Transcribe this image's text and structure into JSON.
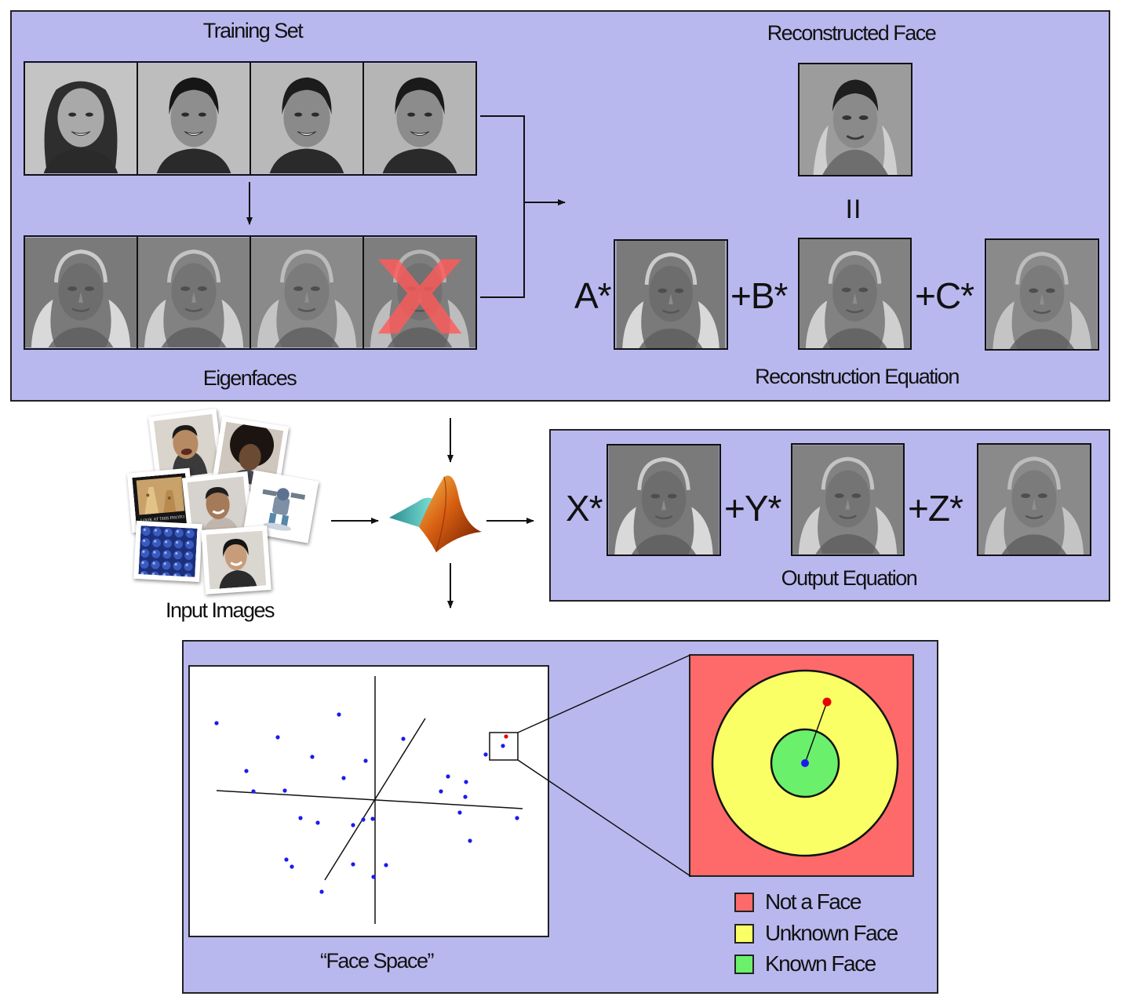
{
  "training": {
    "label": "Training Set",
    "faces": [
      {
        "name": "training-face-1",
        "skin": "#a9a9a9",
        "hair": "#2e2e2e",
        "bg": "#c4c4c4",
        "long_hair": true
      },
      {
        "name": "training-face-2",
        "skin": "#8e8e8e",
        "hair": "#161616",
        "bg": "#bdbdbd",
        "long_hair": false
      },
      {
        "name": "training-face-3",
        "skin": "#8a8a8a",
        "hair": "#1c1c1c",
        "bg": "#b9b9b9",
        "long_hair": false
      },
      {
        "name": "training-face-4",
        "skin": "#8c8c8c",
        "hair": "#1a1a1a",
        "bg": "#b5b5b5",
        "long_hair": false
      }
    ]
  },
  "eigenfaces": {
    "label": "Eigenfaces",
    "discarded_index": 3
  },
  "reconstructed": {
    "label": "Reconstructed Face",
    "equals": "II"
  },
  "reconstruction": {
    "label": "Reconstruction Equation",
    "terms": [
      "A*",
      "+B*",
      "+C*"
    ]
  },
  "input": {
    "label": "Input Images",
    "photo_text": "LOOK AT THIS PHOTO"
  },
  "output": {
    "label": "Output Equation",
    "terms": [
      "X*",
      "+Y*",
      "+Z*"
    ]
  },
  "face_space": {
    "label": "“Face Space”"
  },
  "legend": {
    "items": [
      {
        "label": "Not a Face",
        "color": "#fe6a6a"
      },
      {
        "label": "Unknown Face",
        "color": "#f9ff65"
      },
      {
        "label": "Known Face",
        "color": "#6bf06b"
      }
    ]
  },
  "colors": {
    "panel": "#b9b8ee",
    "point": "#1a1af0",
    "test_point": "#e80000"
  }
}
